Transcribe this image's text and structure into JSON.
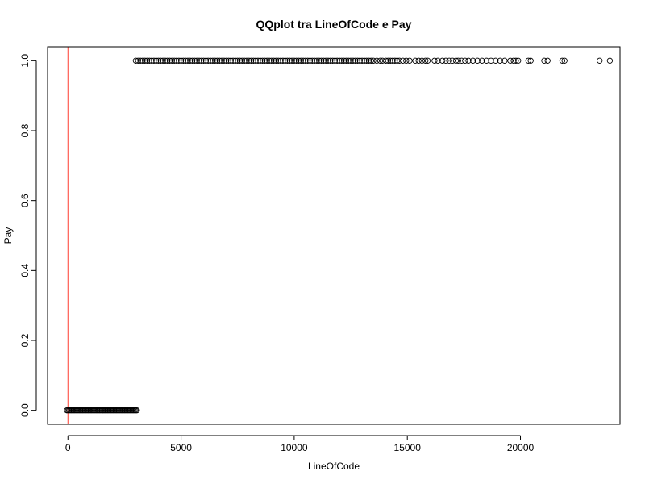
{
  "chart_data": {
    "type": "scatter",
    "title": "QQplot tra LineOfCode e Pay",
    "xlabel": "LineOfCode",
    "ylabel": "Pay",
    "xlim": [
      -900,
      24400
    ],
    "ylim": [
      -0.04,
      1.04
    ],
    "x_ticks": [
      0,
      5000,
      10000,
      15000,
      20000
    ],
    "x_tick_labels": [
      "0",
      "5000",
      "10000",
      "15000",
      "20000"
    ],
    "y_ticks": [
      0.0,
      0.2,
      0.4,
      0.6,
      0.8,
      1.0
    ],
    "y_tick_labels": [
      "0.0",
      "0.2",
      "0.4",
      "0.6",
      "0.8",
      "1.0"
    ],
    "grid": false,
    "reference_line": {
      "orientation": "vertical",
      "x": 0,
      "color": "#ff3b30"
    },
    "series": [
      {
        "marker": "open-circle",
        "color": "#000000",
        "points": [
          [
            -50,
            0
          ],
          [
            0,
            0
          ],
          [
            50,
            0
          ],
          [
            100,
            0
          ],
          [
            150,
            0
          ],
          [
            200,
            0
          ],
          [
            250,
            0
          ],
          [
            300,
            0
          ],
          [
            350,
            0
          ],
          [
            400,
            0
          ],
          [
            450,
            0
          ],
          [
            500,
            0
          ],
          [
            550,
            0
          ],
          [
            600,
            0
          ],
          [
            650,
            0
          ],
          [
            700,
            0
          ],
          [
            750,
            0
          ],
          [
            800,
            0
          ],
          [
            850,
            0
          ],
          [
            900,
            0
          ],
          [
            950,
            0
          ],
          [
            1000,
            0
          ],
          [
            1050,
            0
          ],
          [
            1100,
            0
          ],
          [
            1150,
            0
          ],
          [
            1200,
            0
          ],
          [
            1250,
            0
          ],
          [
            1300,
            0
          ],
          [
            1350,
            0
          ],
          [
            1400,
            0
          ],
          [
            1450,
            0
          ],
          [
            1500,
            0
          ],
          [
            1550,
            0
          ],
          [
            1600,
            0
          ],
          [
            1650,
            0
          ],
          [
            1700,
            0
          ],
          [
            1750,
            0
          ],
          [
            1800,
            0
          ],
          [
            1850,
            0
          ],
          [
            1900,
            0
          ],
          [
            1950,
            0
          ],
          [
            2000,
            0
          ],
          [
            2050,
            0
          ],
          [
            2100,
            0
          ],
          [
            2150,
            0
          ],
          [
            2200,
            0
          ],
          [
            2250,
            0
          ],
          [
            2300,
            0
          ],
          [
            2350,
            0
          ],
          [
            2400,
            0
          ],
          [
            2450,
            0
          ],
          [
            2500,
            0
          ],
          [
            2550,
            0
          ],
          [
            2600,
            0
          ],
          [
            2650,
            0
          ],
          [
            2700,
            0
          ],
          [
            2750,
            0
          ],
          [
            2800,
            0
          ],
          [
            2850,
            0
          ],
          [
            2900,
            0
          ],
          [
            2950,
            0
          ],
          [
            3000,
            0
          ],
          [
            3050,
            0
          ],
          [
            3000,
            1
          ],
          [
            3100,
            1
          ],
          [
            3200,
            1
          ],
          [
            3300,
            1
          ],
          [
            3400,
            1
          ],
          [
            3500,
            1
          ],
          [
            3600,
            1
          ],
          [
            3700,
            1
          ],
          [
            3800,
            1
          ],
          [
            3900,
            1
          ],
          [
            4000,
            1
          ],
          [
            4100,
            1
          ],
          [
            4200,
            1
          ],
          [
            4300,
            1
          ],
          [
            4400,
            1
          ],
          [
            4500,
            1
          ],
          [
            4600,
            1
          ],
          [
            4700,
            1
          ],
          [
            4800,
            1
          ],
          [
            4900,
            1
          ],
          [
            5000,
            1
          ],
          [
            5100,
            1
          ],
          [
            5200,
            1
          ],
          [
            5300,
            1
          ],
          [
            5400,
            1
          ],
          [
            5500,
            1
          ],
          [
            5600,
            1
          ],
          [
            5700,
            1
          ],
          [
            5800,
            1
          ],
          [
            5900,
            1
          ],
          [
            6000,
            1
          ],
          [
            6100,
            1
          ],
          [
            6200,
            1
          ],
          [
            6300,
            1
          ],
          [
            6400,
            1
          ],
          [
            6500,
            1
          ],
          [
            6600,
            1
          ],
          [
            6700,
            1
          ],
          [
            6800,
            1
          ],
          [
            6900,
            1
          ],
          [
            7000,
            1
          ],
          [
            7100,
            1
          ],
          [
            7200,
            1
          ],
          [
            7300,
            1
          ],
          [
            7400,
            1
          ],
          [
            7500,
            1
          ],
          [
            7600,
            1
          ],
          [
            7700,
            1
          ],
          [
            7800,
            1
          ],
          [
            7900,
            1
          ],
          [
            8000,
            1
          ],
          [
            8100,
            1
          ],
          [
            8200,
            1
          ],
          [
            8300,
            1
          ],
          [
            8400,
            1
          ],
          [
            8500,
            1
          ],
          [
            8600,
            1
          ],
          [
            8700,
            1
          ],
          [
            8800,
            1
          ],
          [
            8900,
            1
          ],
          [
            9000,
            1
          ],
          [
            9100,
            1
          ],
          [
            9200,
            1
          ],
          [
            9300,
            1
          ],
          [
            9400,
            1
          ],
          [
            9500,
            1
          ],
          [
            9600,
            1
          ],
          [
            9700,
            1
          ],
          [
            9800,
            1
          ],
          [
            9900,
            1
          ],
          [
            10000,
            1
          ],
          [
            10100,
            1
          ],
          [
            10200,
            1
          ],
          [
            10300,
            1
          ],
          [
            10400,
            1
          ],
          [
            10500,
            1
          ],
          [
            10600,
            1
          ],
          [
            10700,
            1
          ],
          [
            10800,
            1
          ],
          [
            10900,
            1
          ],
          [
            11000,
            1
          ],
          [
            11100,
            1
          ],
          [
            11200,
            1
          ],
          [
            11300,
            1
          ],
          [
            11400,
            1
          ],
          [
            11500,
            1
          ],
          [
            11600,
            1
          ],
          [
            11700,
            1
          ],
          [
            11800,
            1
          ],
          [
            11900,
            1
          ],
          [
            12000,
            1
          ],
          [
            12100,
            1
          ],
          [
            12200,
            1
          ],
          [
            12300,
            1
          ],
          [
            12400,
            1
          ],
          [
            12500,
            1
          ],
          [
            12600,
            1
          ],
          [
            12700,
            1
          ],
          [
            12800,
            1
          ],
          [
            12900,
            1
          ],
          [
            13000,
            1
          ],
          [
            13100,
            1
          ],
          [
            13200,
            1
          ],
          [
            13300,
            1
          ],
          [
            13400,
            1
          ],
          [
            13500,
            1
          ],
          [
            13650,
            1
          ],
          [
            13800,
            1
          ],
          [
            13900,
            1
          ],
          [
            14050,
            1
          ],
          [
            14150,
            1
          ],
          [
            14250,
            1
          ],
          [
            14350,
            1
          ],
          [
            14450,
            1
          ],
          [
            14550,
            1
          ],
          [
            14650,
            1
          ],
          [
            14800,
            1
          ],
          [
            14950,
            1
          ],
          [
            15100,
            1
          ],
          [
            15350,
            1
          ],
          [
            15500,
            1
          ],
          [
            15650,
            1
          ],
          [
            15800,
            1
          ],
          [
            15900,
            1
          ],
          [
            16200,
            1
          ],
          [
            16350,
            1
          ],
          [
            16550,
            1
          ],
          [
            16700,
            1
          ],
          [
            16850,
            1
          ],
          [
            17000,
            1
          ],
          [
            17150,
            1
          ],
          [
            17250,
            1
          ],
          [
            17400,
            1
          ],
          [
            17550,
            1
          ],
          [
            17700,
            1
          ],
          [
            17900,
            1
          ],
          [
            18100,
            1
          ],
          [
            18300,
            1
          ],
          [
            18500,
            1
          ],
          [
            18700,
            1
          ],
          [
            18900,
            1
          ],
          [
            19100,
            1
          ],
          [
            19300,
            1
          ],
          [
            19550,
            1
          ],
          [
            19700,
            1
          ],
          [
            19800,
            1
          ],
          [
            19900,
            1
          ],
          [
            20350,
            1
          ],
          [
            20450,
            1
          ],
          [
            21050,
            1
          ],
          [
            21200,
            1
          ],
          [
            21850,
            1
          ],
          [
            21950,
            1
          ],
          [
            23500,
            1
          ],
          [
            23950,
            1
          ]
        ]
      }
    ]
  }
}
